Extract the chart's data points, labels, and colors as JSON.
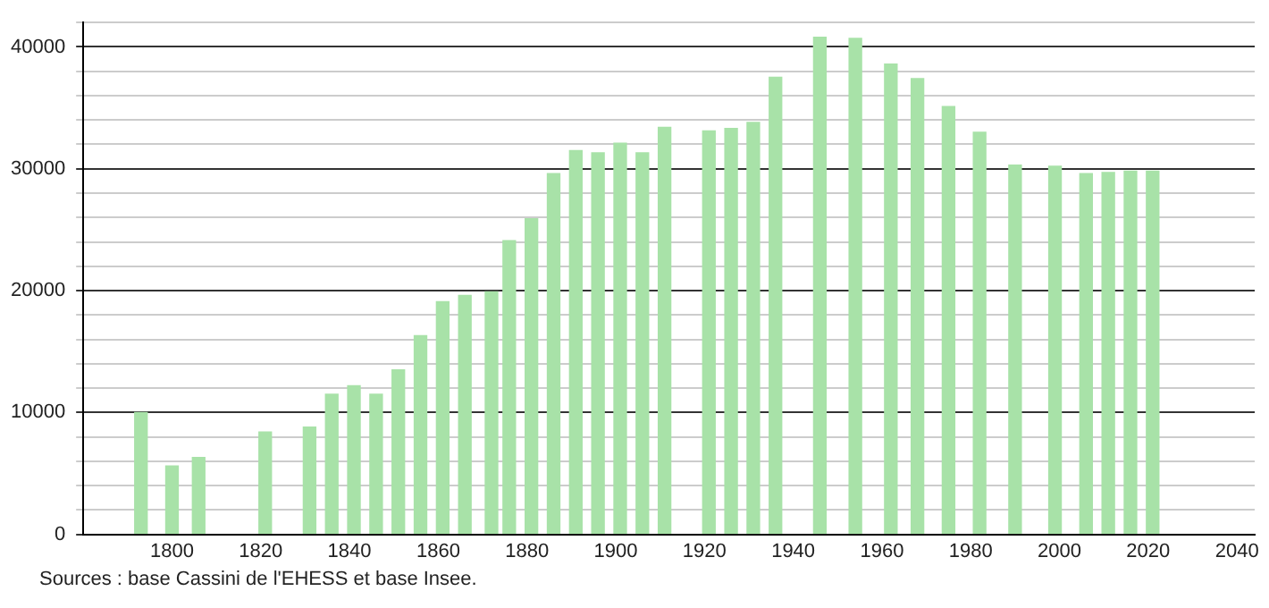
{
  "chart_data": {
    "type": "bar",
    "x": [
      1793,
      1800,
      1806,
      1821,
      1831,
      1836,
      1841,
      1846,
      1851,
      1856,
      1861,
      1866,
      1872,
      1876,
      1881,
      1886,
      1891,
      1896,
      1901,
      1906,
      1911,
      1921,
      1926,
      1931,
      1936,
      1946,
      1954,
      1962,
      1968,
      1975,
      1982,
      1990,
      1999,
      2006,
      2011,
      2016,
      2021
    ],
    "values": [
      10000,
      5600,
      6300,
      8400,
      8800,
      11500,
      12200,
      11500,
      13500,
      16300,
      19100,
      19600,
      19900,
      24100,
      25900,
      29600,
      31500,
      31300,
      32100,
      31300,
      33400,
      33100,
      33300,
      33800,
      37500,
      40800,
      40700,
      38600,
      37400,
      35100,
      33000,
      30300,
      30200,
      29600,
      29700,
      29800,
      29800
    ],
    "color": "#a8e2a8",
    "xlim": [
      1780,
      2044
    ],
    "xticks": [
      1800,
      1820,
      1840,
      1860,
      1880,
      1900,
      1920,
      1940,
      1960,
      1980,
      2000,
      2020,
      2040
    ],
    "ylim": [
      0,
      42000
    ],
    "yticks": [
      0,
      {
        "value": 2000,
        "label": null
      },
      {
        "value": 4000,
        "label": null
      },
      {
        "value": 6000,
        "label": null
      },
      {
        "value": 8000,
        "label": null
      },
      10000,
      {
        "value": 12000,
        "label": null
      },
      {
        "value": 14000,
        "label": null
      },
      {
        "value": 16000,
        "label": null
      },
      {
        "value": 18000,
        "label": null
      },
      20000,
      {
        "value": 22000,
        "label": null
      },
      {
        "value": 24000,
        "label": null
      },
      {
        "value": 26000,
        "label": null
      },
      {
        "value": 28000,
        "label": null
      },
      30000,
      {
        "value": 32000,
        "label": null
      },
      {
        "value": 34000,
        "label": null
      },
      {
        "value": 36000,
        "label": null
      },
      {
        "value": 38000,
        "label": null
      },
      40000,
      {
        "value": 42000,
        "label": null
      }
    ],
    "grid": "y",
    "annotations": [
      "Sources : base Cassini de l'EHESS et base Insee."
    ]
  }
}
